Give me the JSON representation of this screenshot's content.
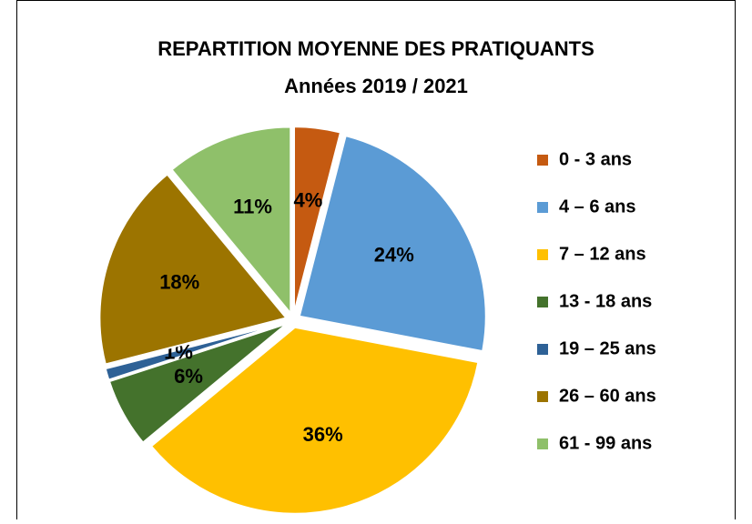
{
  "chart_data": {
    "type": "pie",
    "title": "REPARTITION MOYENNE DES PRATIQUANTS",
    "subtitle": "Années 2019 / 2021",
    "categories": [
      "0 - 3 ans",
      "4 – 6 ans",
      "7 – 12 ans",
      "13 - 18 ans",
      "19 – 25 ans",
      "26 – 60 ans",
      "61 - 99 ans"
    ],
    "values": [
      4,
      24,
      36,
      6,
      1,
      18,
      11
    ],
    "value_labels": [
      "4%",
      "24%",
      "36%",
      "6%",
      "1%",
      "18%",
      "11%"
    ],
    "colors": [
      "#c55a11",
      "#5b9bd5",
      "#ffc000",
      "#44722c",
      "#2e6196",
      "#9c7400",
      "#8fc06a"
    ],
    "legend": "right"
  }
}
